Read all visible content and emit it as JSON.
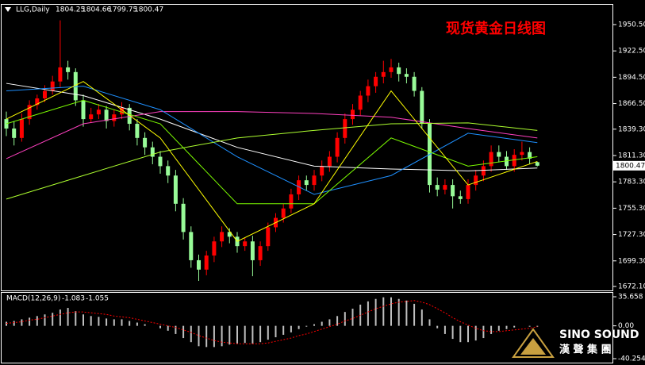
{
  "chart_data": {
    "type": "candlestick",
    "symbol": "LLG,Daily",
    "title": "现货黄金日线图",
    "up_color": "#ff0000",
    "down_color": "#98fb98",
    "open": [
      1850,
      1840,
      1830,
      1850,
      1865,
      1872,
      1880,
      1890,
      1905,
      1900,
      1870,
      1850,
      1855,
      1860,
      1848,
      1855,
      1862,
      1845,
      1830,
      1820,
      1810,
      1800,
      1790,
      1760,
      1730,
      1700,
      1690,
      1705,
      1720,
      1730,
      1725,
      1715,
      1720,
      1700,
      1715,
      1735,
      1745,
      1755,
      1770,
      1785,
      1780,
      1790,
      1800,
      1810,
      1830,
      1850,
      1860,
      1875,
      1885,
      1895,
      1900,
      1905,
      1898,
      1895,
      1880,
      1845,
      1780,
      1775,
      1780,
      1768,
      1765,
      1780,
      1790,
      1800,
      1815,
      1810,
      1800,
      1812,
      1815,
      1804.25
    ],
    "high": [
      1858,
      1848,
      1856,
      1870,
      1876,
      1886,
      1896,
      1955,
      1912,
      1904,
      1876,
      1862,
      1866,
      1864,
      1860,
      1868,
      1866,
      1850,
      1836,
      1826,
      1816,
      1806,
      1796,
      1766,
      1736,
      1706,
      1710,
      1725,
      1736,
      1734,
      1730,
      1724,
      1726,
      1720,
      1740,
      1750,
      1760,
      1776,
      1790,
      1790,
      1796,
      1806,
      1816,
      1836,
      1856,
      1866,
      1880,
      1892,
      1900,
      1912,
      1914,
      1910,
      1904,
      1900,
      1884,
      1850,
      1788,
      1786,
      1786,
      1774,
      1786,
      1796,
      1806,
      1822,
      1822,
      1816,
      1818,
      1826,
      1820,
      1804.66
    ],
    "low": [
      1832,
      1822,
      1826,
      1844,
      1860,
      1868,
      1876,
      1884,
      1892,
      1864,
      1842,
      1846,
      1850,
      1840,
      1842,
      1850,
      1838,
      1822,
      1812,
      1802,
      1792,
      1782,
      1752,
      1722,
      1692,
      1678,
      1684,
      1698,
      1714,
      1718,
      1708,
      1710,
      1683,
      1694,
      1710,
      1730,
      1740,
      1750,
      1764,
      1774,
      1774,
      1784,
      1794,
      1804,
      1824,
      1844,
      1854,
      1868,
      1878,
      1888,
      1894,
      1890,
      1888,
      1874,
      1840,
      1772,
      1768,
      1770,
      1755,
      1760,
      1760,
      1774,
      1784,
      1794,
      1804,
      1796,
      1794,
      1806,
      1802,
      1799.75
    ],
    "close": [
      1840,
      1830,
      1850,
      1865,
      1872,
      1880,
      1890,
      1905,
      1900,
      1870,
      1850,
      1855,
      1860,
      1848,
      1855,
      1862,
      1845,
      1830,
      1820,
      1810,
      1800,
      1790,
      1760,
      1730,
      1700,
      1690,
      1705,
      1720,
      1730,
      1725,
      1715,
      1720,
      1700,
      1715,
      1735,
      1745,
      1755,
      1770,
      1785,
      1780,
      1790,
      1800,
      1810,
      1830,
      1850,
      1860,
      1875,
      1885,
      1895,
      1900,
      1905,
      1898,
      1895,
      1880,
      1845,
      1780,
      1775,
      1780,
      1768,
      1765,
      1780,
      1790,
      1800,
      1815,
      1810,
      1800,
      1812,
      1815,
      1808,
      1800.47
    ],
    "moving_averages": [
      {
        "color": "#ffffff",
        "x": [
          0,
          10,
          20,
          30,
          40,
          50,
          60,
          69
        ],
        "values": [
          1888,
          1875,
          1850,
          1820,
          1800,
          1797,
          1795,
          1798
        ]
      },
      {
        "color": "#ff40c0",
        "x": [
          0,
          10,
          20,
          30,
          40,
          50,
          60,
          69
        ],
        "values": [
          1808,
          1845,
          1858,
          1858,
          1856,
          1852,
          1840,
          1830
        ]
      },
      {
        "color": "#1e90ff",
        "x": [
          0,
          10,
          20,
          30,
          40,
          50,
          60,
          69
        ],
        "values": [
          1880,
          1885,
          1860,
          1810,
          1770,
          1790,
          1835,
          1825
        ]
      },
      {
        "color": "#adff2f",
        "x": [
          0,
          10,
          20,
          30,
          40,
          50,
          60,
          69
        ],
        "values": [
          1765,
          1790,
          1815,
          1830,
          1838,
          1845,
          1846,
          1838
        ]
      },
      {
        "color": "#7cfc00",
        "x": [
          0,
          10,
          20,
          30,
          40,
          50,
          60,
          69
        ],
        "values": [
          1845,
          1870,
          1845,
          1760,
          1760,
          1830,
          1800,
          1810
        ]
      },
      {
        "color": "#ffff00",
        "x": [
          0,
          10,
          20,
          30,
          40,
          50,
          60,
          69
        ],
        "values": [
          1850,
          1890,
          1830,
          1720,
          1760,
          1880,
          1780,
          1805
        ]
      }
    ],
    "ylim": [
      1667.9,
      1972.4
    ],
    "yticks": [
      {
        "value": 1950.5,
        "label": "1950.50"
      },
      {
        "value": 1922.5,
        "label": "1922.50"
      },
      {
        "value": 1894.5,
        "label": "1894.50"
      },
      {
        "value": 1866.5,
        "label": "1866.50"
      },
      {
        "value": 1839.3,
        "label": "1839.30"
      },
      {
        "value": 1811.3,
        "label": "1811.30"
      },
      {
        "value": 1783.3,
        "label": "1783.30"
      },
      {
        "value": 1755.3,
        "label": "1755.30"
      },
      {
        "value": 1727.3,
        "label": "1727.30"
      },
      {
        "value": 1699.3,
        "label": "1699.30"
      },
      {
        "value": 1672.1,
        "label": "1672.10"
      }
    ],
    "macd": {
      "label": "MACD(12,26,9)",
      "color": "#c0c0c0",
      "signal_color": "#ff0000",
      "values": [
        5,
        6,
        8,
        10,
        12,
        14,
        16,
        20,
        22,
        18,
        14,
        12,
        11,
        9,
        8,
        8,
        6,
        4,
        2,
        0,
        -3,
        -6,
        -10,
        -15,
        -20,
        -25,
        -26,
        -26,
        -25,
        -23,
        -22,
        -21,
        -22,
        -20,
        -17,
        -14,
        -11,
        -8,
        -4,
        -1,
        2,
        5,
        8,
        12,
        17,
        21,
        26,
        30,
        33,
        35,
        35,
        33,
        31,
        27,
        20,
        8,
        -3,
        -10,
        -16,
        -20,
        -20,
        -18,
        -15,
        -10,
        -6,
        -4,
        -2,
        0,
        -1,
        -1.083
      ],
      "signal": [
        3,
        4,
        5,
        7,
        8,
        10,
        12,
        14,
        16,
        17,
        17,
        16,
        15,
        14,
        12,
        11,
        10,
        8,
        6,
        4,
        2,
        0,
        -2,
        -5,
        -8,
        -12,
        -15,
        -18,
        -20,
        -21,
        -22,
        -22,
        -22,
        -22,
        -21,
        -19,
        -17,
        -15,
        -12,
        -10,
        -7,
        -4,
        -1,
        2,
        6,
        9,
        13,
        17,
        21,
        24,
        27,
        29,
        30,
        31,
        29,
        26,
        21,
        16,
        10,
        5,
        1,
        -3,
        -6,
        -7,
        -7,
        -6,
        -5,
        -4,
        -3,
        -1.055
      ],
      "ylim": [
        -45.12,
        41.5
      ],
      "yticks": [
        35.658,
        {
          "value": 0,
          "label": "0.00"
        },
        -40.254
      ]
    }
  },
  "logo": {
    "name": "SINO SOUND",
    "subtitle": "漢 聲 集 團"
  }
}
